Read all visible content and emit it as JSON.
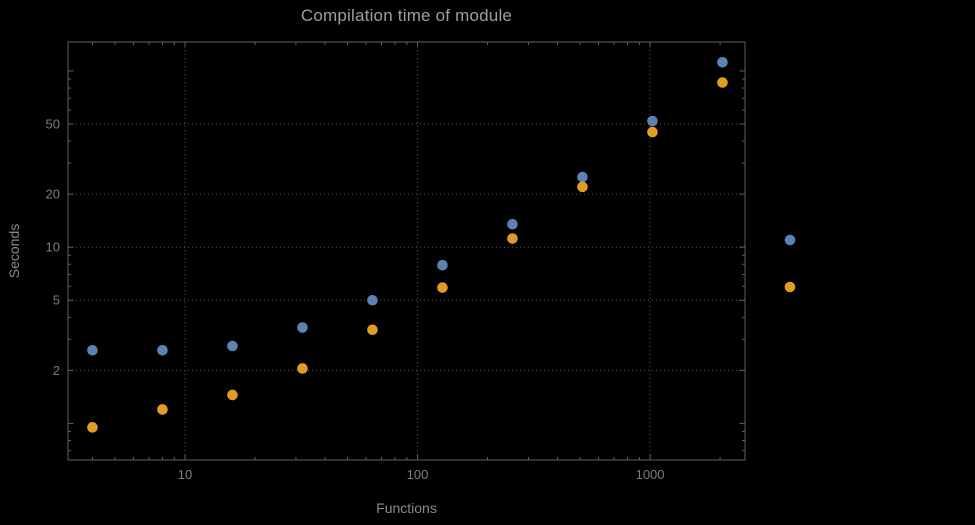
{
  "chart_data": {
    "type": "scatter",
    "title": "Compilation time of module",
    "xlabel": "Functions",
    "ylabel": "Seconds",
    "x_scale": "log",
    "y_scale": "log",
    "grid": true,
    "legend_position": "right-outside",
    "x": [
      4,
      8,
      16,
      32,
      64,
      128,
      256,
      512,
      1024,
      2048
    ],
    "series": [
      {
        "name": "blue",
        "color": "#5e81b5",
        "values": [
          2.6,
          2.6,
          2.75,
          3.5,
          5.0,
          7.9,
          13.5,
          25,
          52,
          112
        ]
      },
      {
        "name": "orange",
        "color": "#e19c24",
        "values": [
          0.95,
          1.2,
          1.45,
          2.05,
          3.4,
          5.9,
          11.2,
          22,
          45,
          86
        ]
      }
    ],
    "x_ticks": [
      10,
      100,
      1000
    ],
    "x_tick_labels": [
      "10",
      "100",
      "1000"
    ],
    "y_ticks": [
      2,
      5,
      10,
      20,
      50
    ],
    "y_tick_labels": [
      "2",
      "5",
      "10",
      "20",
      "50"
    ],
    "x_range": [
      3.14,
      2560
    ],
    "y_range": [
      0.62,
      146
    ]
  },
  "legend": {
    "markers": [
      {
        "series": "blue",
        "color": "#5e81b5"
      },
      {
        "series": "orange",
        "color": "#e19c24"
      }
    ]
  },
  "style": {
    "background": "#000000",
    "frame_color": "#616161",
    "grid_color": "#565656",
    "title_color": "#9e9e9e",
    "axis_label_color": "#8a8a8a",
    "tick_label_color": "#7d7d7d"
  }
}
